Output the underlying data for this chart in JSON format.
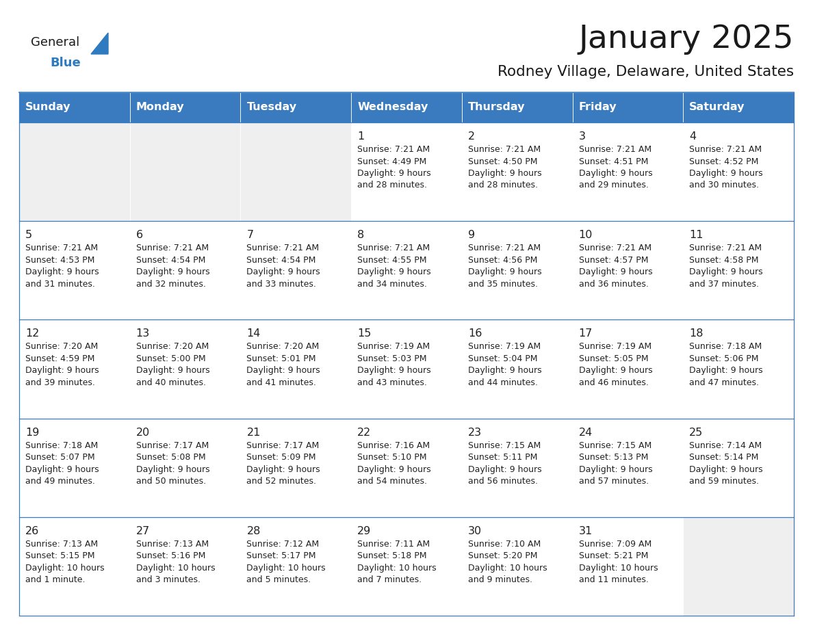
{
  "title": "January 2025",
  "subtitle": "Rodney Village, Delaware, United States",
  "days_of_week": [
    "Sunday",
    "Monday",
    "Tuesday",
    "Wednesday",
    "Thursday",
    "Friday",
    "Saturday"
  ],
  "header_bg": "#3a7bbf",
  "header_text": "#ffffff",
  "cell_bg_light": "#efefef",
  "cell_bg_white": "#ffffff",
  "cell_text": "#222222",
  "border_color": "#3a7bbf",
  "title_color": "#1a1a1a",
  "subtitle_color": "#1a1a1a",
  "logo_general_color": "#1a1a1a",
  "logo_blue_color": "#2e7bbf",
  "calendar_data": [
    [
      null,
      null,
      null,
      {
        "day": 1,
        "sunrise": "7:21 AM",
        "sunset": "4:49 PM",
        "daylight_line1": "Daylight: 9 hours",
        "daylight_line2": "and 28 minutes."
      },
      {
        "day": 2,
        "sunrise": "7:21 AM",
        "sunset": "4:50 PM",
        "daylight_line1": "Daylight: 9 hours",
        "daylight_line2": "and 28 minutes."
      },
      {
        "day": 3,
        "sunrise": "7:21 AM",
        "sunset": "4:51 PM",
        "daylight_line1": "Daylight: 9 hours",
        "daylight_line2": "and 29 minutes."
      },
      {
        "day": 4,
        "sunrise": "7:21 AM",
        "sunset": "4:52 PM",
        "daylight_line1": "Daylight: 9 hours",
        "daylight_line2": "and 30 minutes."
      }
    ],
    [
      {
        "day": 5,
        "sunrise": "7:21 AM",
        "sunset": "4:53 PM",
        "daylight_line1": "Daylight: 9 hours",
        "daylight_line2": "and 31 minutes."
      },
      {
        "day": 6,
        "sunrise": "7:21 AM",
        "sunset": "4:54 PM",
        "daylight_line1": "Daylight: 9 hours",
        "daylight_line2": "and 32 minutes."
      },
      {
        "day": 7,
        "sunrise": "7:21 AM",
        "sunset": "4:54 PM",
        "daylight_line1": "Daylight: 9 hours",
        "daylight_line2": "and 33 minutes."
      },
      {
        "day": 8,
        "sunrise": "7:21 AM",
        "sunset": "4:55 PM",
        "daylight_line1": "Daylight: 9 hours",
        "daylight_line2": "and 34 minutes."
      },
      {
        "day": 9,
        "sunrise": "7:21 AM",
        "sunset": "4:56 PM",
        "daylight_line1": "Daylight: 9 hours",
        "daylight_line2": "and 35 minutes."
      },
      {
        "day": 10,
        "sunrise": "7:21 AM",
        "sunset": "4:57 PM",
        "daylight_line1": "Daylight: 9 hours",
        "daylight_line2": "and 36 minutes."
      },
      {
        "day": 11,
        "sunrise": "7:21 AM",
        "sunset": "4:58 PM",
        "daylight_line1": "Daylight: 9 hours",
        "daylight_line2": "and 37 minutes."
      }
    ],
    [
      {
        "day": 12,
        "sunrise": "7:20 AM",
        "sunset": "4:59 PM",
        "daylight_line1": "Daylight: 9 hours",
        "daylight_line2": "and 39 minutes."
      },
      {
        "day": 13,
        "sunrise": "7:20 AM",
        "sunset": "5:00 PM",
        "daylight_line1": "Daylight: 9 hours",
        "daylight_line2": "and 40 minutes."
      },
      {
        "day": 14,
        "sunrise": "7:20 AM",
        "sunset": "5:01 PM",
        "daylight_line1": "Daylight: 9 hours",
        "daylight_line2": "and 41 minutes."
      },
      {
        "day": 15,
        "sunrise": "7:19 AM",
        "sunset": "5:03 PM",
        "daylight_line1": "Daylight: 9 hours",
        "daylight_line2": "and 43 minutes."
      },
      {
        "day": 16,
        "sunrise": "7:19 AM",
        "sunset": "5:04 PM",
        "daylight_line1": "Daylight: 9 hours",
        "daylight_line2": "and 44 minutes."
      },
      {
        "day": 17,
        "sunrise": "7:19 AM",
        "sunset": "5:05 PM",
        "daylight_line1": "Daylight: 9 hours",
        "daylight_line2": "and 46 minutes."
      },
      {
        "day": 18,
        "sunrise": "7:18 AM",
        "sunset": "5:06 PM",
        "daylight_line1": "Daylight: 9 hours",
        "daylight_line2": "and 47 minutes."
      }
    ],
    [
      {
        "day": 19,
        "sunrise": "7:18 AM",
        "sunset": "5:07 PM",
        "daylight_line1": "Daylight: 9 hours",
        "daylight_line2": "and 49 minutes."
      },
      {
        "day": 20,
        "sunrise": "7:17 AM",
        "sunset": "5:08 PM",
        "daylight_line1": "Daylight: 9 hours",
        "daylight_line2": "and 50 minutes."
      },
      {
        "day": 21,
        "sunrise": "7:17 AM",
        "sunset": "5:09 PM",
        "daylight_line1": "Daylight: 9 hours",
        "daylight_line2": "and 52 minutes."
      },
      {
        "day": 22,
        "sunrise": "7:16 AM",
        "sunset": "5:10 PM",
        "daylight_line1": "Daylight: 9 hours",
        "daylight_line2": "and 54 minutes."
      },
      {
        "day": 23,
        "sunrise": "7:15 AM",
        "sunset": "5:11 PM",
        "daylight_line1": "Daylight: 9 hours",
        "daylight_line2": "and 56 minutes."
      },
      {
        "day": 24,
        "sunrise": "7:15 AM",
        "sunset": "5:13 PM",
        "daylight_line1": "Daylight: 9 hours",
        "daylight_line2": "and 57 minutes."
      },
      {
        "day": 25,
        "sunrise": "7:14 AM",
        "sunset": "5:14 PM",
        "daylight_line1": "Daylight: 9 hours",
        "daylight_line2": "and 59 minutes."
      }
    ],
    [
      {
        "day": 26,
        "sunrise": "7:13 AM",
        "sunset": "5:15 PM",
        "daylight_line1": "Daylight: 10 hours",
        "daylight_line2": "and 1 minute."
      },
      {
        "day": 27,
        "sunrise": "7:13 AM",
        "sunset": "5:16 PM",
        "daylight_line1": "Daylight: 10 hours",
        "daylight_line2": "and 3 minutes."
      },
      {
        "day": 28,
        "sunrise": "7:12 AM",
        "sunset": "5:17 PM",
        "daylight_line1": "Daylight: 10 hours",
        "daylight_line2": "and 5 minutes."
      },
      {
        "day": 29,
        "sunrise": "7:11 AM",
        "sunset": "5:18 PM",
        "daylight_line1": "Daylight: 10 hours",
        "daylight_line2": "and 7 minutes."
      },
      {
        "day": 30,
        "sunrise": "7:10 AM",
        "sunset": "5:20 PM",
        "daylight_line1": "Daylight: 10 hours",
        "daylight_line2": "and 9 minutes."
      },
      {
        "day": 31,
        "sunrise": "7:09 AM",
        "sunset": "5:21 PM",
        "daylight_line1": "Daylight: 10 hours",
        "daylight_line2": "and 11 minutes."
      },
      null
    ]
  ],
  "fig_width": 11.88,
  "fig_height": 9.18,
  "dpi": 100
}
